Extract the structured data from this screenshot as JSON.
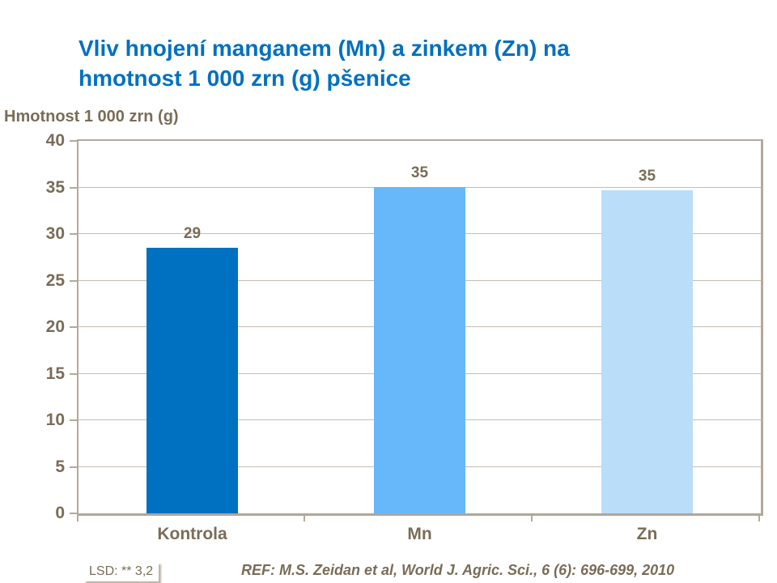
{
  "title": "Vliv hnojení manganem (Mn) a zinkem (Zn) na hmotnost 1 000 zrn (g) pšenice",
  "axis_title": "Hmotnost 1 000 zrn (g)",
  "footer": {
    "lsd": "LSD: ** 3,2",
    "ref": "REF: M.S. Zeidan et al, World J. Agric. Sci., 6 (6): 696-699, 2010"
  },
  "colors": {
    "title": "#0070C0",
    "text": "#7A6C58",
    "grid": "#C6BDB1",
    "axis": "#B3A99D",
    "bars": [
      "#0070C0",
      "#66B8FA",
      "#BADDFA"
    ]
  },
  "chart_data": {
    "type": "bar",
    "title": "Vliv hnojení manganem (Mn) a zinkem (Zn) na hmotnost 1 000 zrn (g) pšenice",
    "categories": [
      "Kontrola",
      "Mn",
      "Zn"
    ],
    "values": [
      29,
      35,
      35
    ],
    "data_labels": [
      "29",
      "35",
      "35"
    ],
    "plotted_values": [
      28.5,
      35.05,
      34.7
    ],
    "xlabel": "",
    "ylabel": "Hmotnost 1 000 zrn (g)",
    "ylim": [
      0,
      40
    ],
    "yticks": [
      0,
      5,
      10,
      15,
      20,
      25,
      30,
      35,
      40
    ],
    "grid": true,
    "legend": false,
    "annotations": [
      "LSD: ** 3,2",
      "REF: M.S. Zeidan et al, World J. Agric. Sci., 6 (6): 696-699, 2010"
    ]
  }
}
